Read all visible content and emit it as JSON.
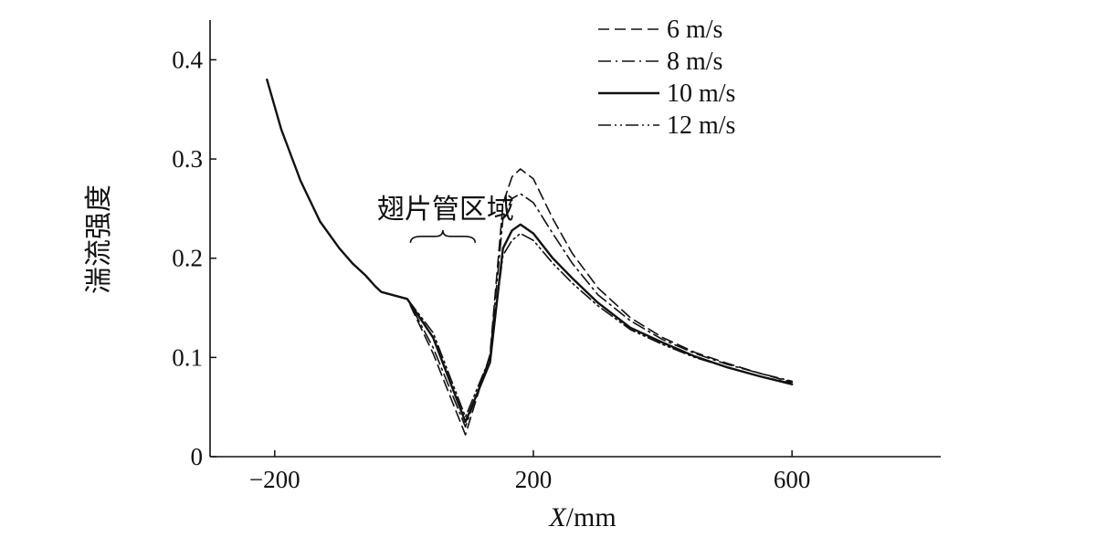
{
  "chart_data": {
    "type": "line",
    "title": "",
    "xlabel_italic": "X",
    "xlabel_unit": "/mm",
    "ylabel": "湍流强度",
    "xlim": [
      -300,
      830
    ],
    "ylim": [
      0,
      0.44
    ],
    "x_ticks": [
      {
        "value": -200,
        "label": "−200"
      },
      {
        "value": 200,
        "label": "200"
      },
      {
        "value": 600,
        "label": "600"
      }
    ],
    "y_ticks": [
      {
        "value": 0,
        "label": "0"
      },
      {
        "value": 0.1,
        "label": "0.1"
      },
      {
        "value": 0.2,
        "label": "0.2"
      },
      {
        "value": 0.3,
        "label": "0.3"
      },
      {
        "value": 0.4,
        "label": "0.4"
      }
    ],
    "annotation": {
      "text": "翅片管区域",
      "x_start": 10,
      "x_end": 110,
      "y": 0.222
    },
    "legend": {
      "placement": "top-right",
      "entries": [
        {
          "name": "6 m/s",
          "style": "dashed"
        },
        {
          "name": "8 m/s",
          "style": "dashdot"
        },
        {
          "name": "10 m/s",
          "style": "solid"
        },
        {
          "name": "12 m/s",
          "style": "dashdotdot"
        }
      ]
    },
    "series": [
      {
        "name": "6 m/s",
        "style": "dashed",
        "x": [
          -212,
          -190,
          -160,
          -130,
          -100,
          -80,
          -60,
          -45,
          -35,
          5,
          45,
          95,
          133,
          153,
          167,
          180,
          200,
          230,
          260,
          300,
          350,
          400,
          450,
          500,
          550,
          600
        ],
        "y": [
          0.38,
          0.33,
          0.278,
          0.237,
          0.21,
          0.195,
          0.183,
          0.172,
          0.166,
          0.159,
          0.104,
          0.022,
          0.103,
          0.255,
          0.282,
          0.29,
          0.28,
          0.24,
          0.205,
          0.17,
          0.14,
          0.12,
          0.105,
          0.094,
          0.084,
          0.075
        ]
      },
      {
        "name": "8 m/s",
        "style": "dashdot",
        "x": [
          -212,
          -190,
          -160,
          -130,
          -100,
          -80,
          -60,
          -45,
          -35,
          5,
          45,
          95,
          133,
          153,
          167,
          180,
          200,
          230,
          260,
          300,
          350,
          400,
          450,
          500,
          550,
          600
        ],
        "y": [
          0.38,
          0.33,
          0.278,
          0.237,
          0.21,
          0.195,
          0.183,
          0.172,
          0.166,
          0.159,
          0.11,
          0.03,
          0.101,
          0.24,
          0.26,
          0.265,
          0.256,
          0.225,
          0.195,
          0.163,
          0.137,
          0.118,
          0.104,
          0.093,
          0.084,
          0.076
        ]
      },
      {
        "name": "10 m/s",
        "style": "solid",
        "x": [
          -212,
          -190,
          -160,
          -130,
          -100,
          -80,
          -60,
          -45,
          -35,
          5,
          45,
          95,
          133,
          153,
          167,
          180,
          200,
          230,
          260,
          300,
          350,
          400,
          450,
          500,
          550,
          600
        ],
        "y": [
          0.38,
          0.33,
          0.278,
          0.237,
          0.21,
          0.195,
          0.183,
          0.172,
          0.166,
          0.159,
          0.12,
          0.035,
          0.095,
          0.21,
          0.228,
          0.234,
          0.225,
          0.2,
          0.18,
          0.155,
          0.13,
          0.115,
          0.101,
          0.09,
          0.081,
          0.073
        ]
      },
      {
        "name": "12 m/s",
        "style": "dashdotdot",
        "x": [
          -212,
          -190,
          -160,
          -130,
          -100,
          -80,
          -60,
          -45,
          -35,
          5,
          45,
          95,
          133,
          153,
          167,
          180,
          200,
          230,
          260,
          300,
          350,
          400,
          450,
          500,
          550,
          600
        ],
        "y": [
          0.38,
          0.33,
          0.278,
          0.237,
          0.21,
          0.195,
          0.183,
          0.172,
          0.166,
          0.159,
          0.125,
          0.04,
          0.1,
          0.203,
          0.218,
          0.225,
          0.218,
          0.195,
          0.175,
          0.152,
          0.128,
          0.113,
          0.1,
          0.09,
          0.081,
          0.074
        ]
      }
    ]
  }
}
